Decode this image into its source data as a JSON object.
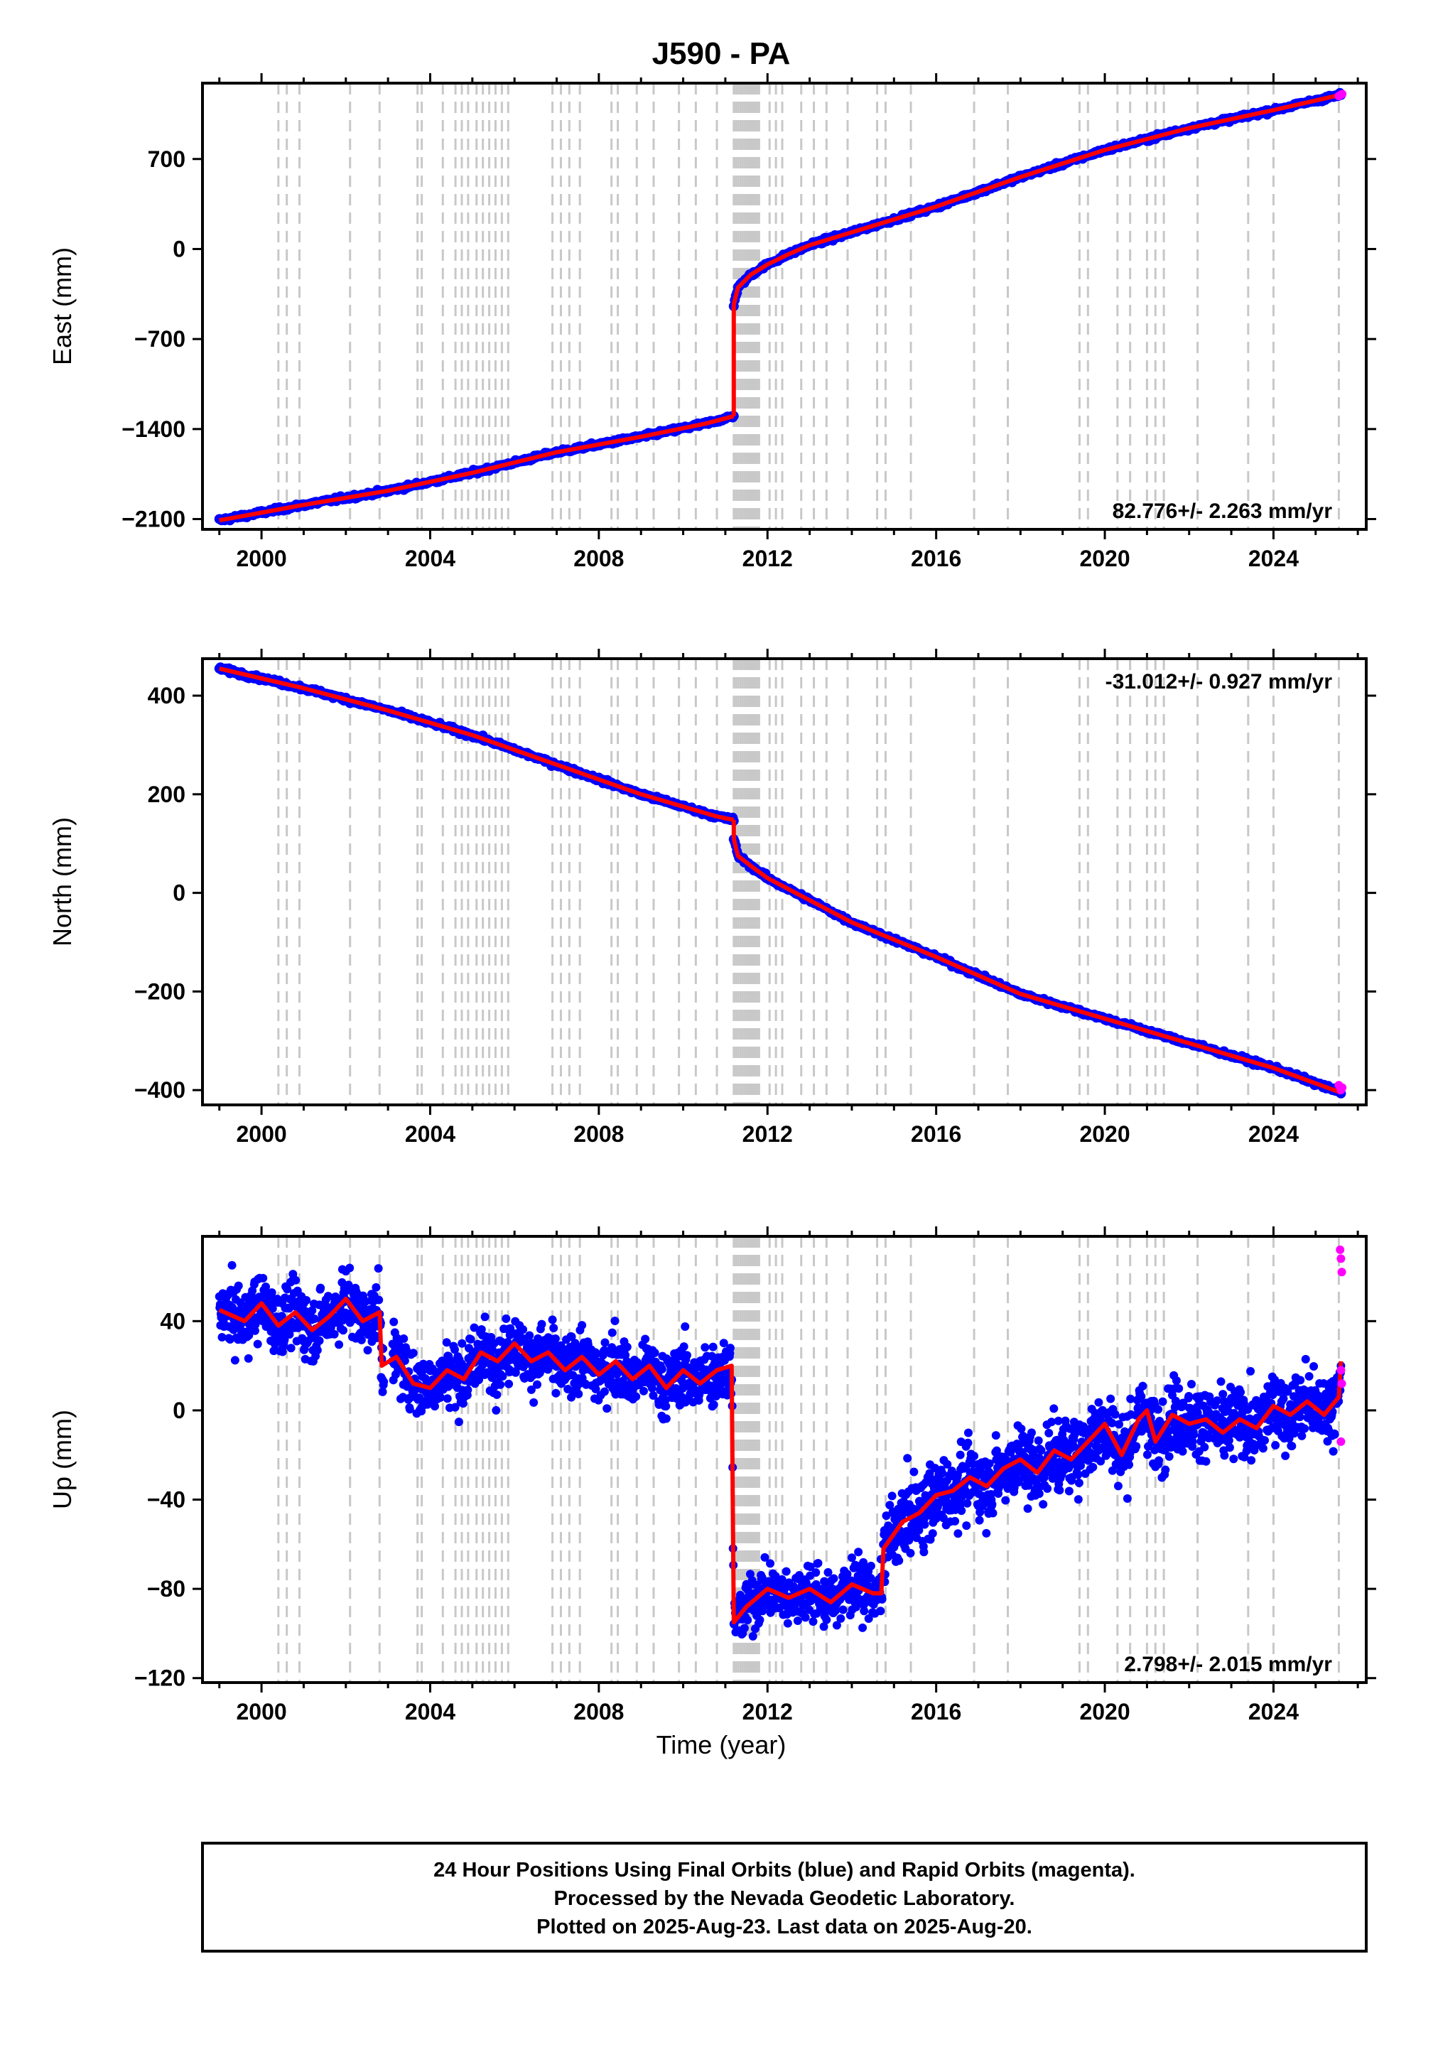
{
  "title": "J590 - PA",
  "xlabel": "Time (year)",
  "x_tick_labels": [
    "2000",
    "2004",
    "2008",
    "2012",
    "2016",
    "2020",
    "2024"
  ],
  "caption": {
    "line1": "24 Hour Positions Using Final Orbits (blue) and Rapid Orbits (magenta).",
    "line2": "Processed by the Nevada Geodetic Laboratory.",
    "line3": "Plotted on 2025-Aug-23. Last data on 2025-Aug-20."
  },
  "colors": {
    "final_orbits": "#0000ff",
    "rapid_orbits": "#ff00ff",
    "model": "#ff0000",
    "event_lines": "#c8c8c8"
  },
  "chart_data": [
    {
      "type": "scatter",
      "ylabel": "East (mm)",
      "rate_label": "82.776+/- 2.263 mm/yr",
      "xlim": [
        1998.6,
        2026.2
      ],
      "ylim": [
        -2180,
        1290
      ],
      "y_ticks": [
        700,
        0,
        -700,
        -1400,
        -2100
      ],
      "y_tick_labels": [
        "700",
        "0",
        "−700",
        "−1400",
        "−2100"
      ],
      "segments": [
        {
          "x": [
            1999.0,
            2001.0,
            2003.0,
            2005.0,
            2007.0,
            2009.0,
            2010.5,
            2011.2
          ],
          "y": [
            -2110,
            -1990,
            -1880,
            -1740,
            -1580,
            -1460,
            -1360,
            -1300
          ]
        },
        {
          "x": [
            2011.2,
            2011.3,
            2011.6,
            2012.0,
            2012.5,
            2013.0,
            2014.0,
            2016.0,
            2018.0,
            2020.0,
            2022.0,
            2024.0,
            2025.6
          ],
          "y": [
            -430,
            -300,
            -200,
            -120,
            -40,
            30,
            130,
            330,
            560,
            770,
            940,
            1080,
            1200
          ]
        }
      ],
      "rapid_points": {
        "x": [
          2025.55,
          2025.6,
          2025.63
        ],
        "y": [
          1190,
          1200,
          1205
        ]
      }
    },
    {
      "type": "scatter",
      "ylabel": "North (mm)",
      "rate_label": "-31.012+/- 0.927 mm/yr",
      "xlim": [
        1998.6,
        2026.2
      ],
      "ylim": [
        -430,
        475
      ],
      "y_ticks": [
        400,
        200,
        0,
        -200,
        -400
      ],
      "y_tick_labels": [
        "400",
        "200",
        "0",
        "−200",
        "−400"
      ],
      "segments": [
        {
          "x": [
            1999.0,
            2001.0,
            2003.0,
            2005.0,
            2007.0,
            2009.0,
            2010.8,
            2011.2
          ],
          "y": [
            455,
            415,
            370,
            320,
            260,
            200,
            155,
            148
          ]
        },
        {
          "x": [
            2011.2,
            2011.3,
            2011.6,
            2012.0,
            2013.0,
            2014.0,
            2016.0,
            2018.0,
            2020.0,
            2022.0,
            2024.0,
            2025.6
          ],
          "y": [
            110,
            75,
            55,
            30,
            -15,
            -60,
            -130,
            -205,
            -255,
            -305,
            -355,
            -405
          ]
        }
      ],
      "rapid_points": {
        "x": [
          2025.55,
          2025.6,
          2025.63
        ],
        "y": [
          -390,
          -400,
          -395
        ]
      }
    },
    {
      "type": "scatter",
      "ylabel": "Up (mm)",
      "rate_label": "2.798+/- 2.015 mm/yr",
      "xlim": [
        1998.6,
        2026.2
      ],
      "ylim": [
        -122,
        78
      ],
      "y_ticks": [
        40,
        0,
        -40,
        -80,
        -120
      ],
      "y_tick_labels": [
        "40",
        "0",
        "−40",
        "−80",
        "−120"
      ],
      "model": {
        "x": [
          1999.0,
          1999.6,
          2000.0,
          2000.4,
          2000.8,
          2001.2,
          2001.6,
          2002.0,
          2002.4,
          2002.8,
          2002.85,
          2003.2,
          2003.6,
          2004.0,
          2004.4,
          2004.8,
          2005.2,
          2005.6,
          2006.0,
          2006.4,
          2006.8,
          2007.2,
          2007.6,
          2008.0,
          2008.4,
          2008.8,
          2009.2,
          2009.6,
          2010.0,
          2010.4,
          2010.8,
          2011.15,
          2011.2,
          2011.5,
          2012.0,
          2012.5,
          2013.0,
          2013.5,
          2014.0,
          2014.5,
          2014.7,
          2014.75,
          2015.2,
          2015.6,
          2016.0,
          2016.4,
          2016.8,
          2017.2,
          2017.6,
          2018.0,
          2018.4,
          2018.8,
          2019.2,
          2019.6,
          2020.0,
          2020.4,
          2020.8,
          2021.0,
          2021.2,
          2021.6,
          2022.0,
          2022.4,
          2022.8,
          2023.2,
          2023.6,
          2024.0,
          2024.4,
          2024.8,
          2025.2,
          2025.55,
          2025.6
        ],
        "y": [
          45,
          40,
          48,
          38,
          44,
          36,
          42,
          50,
          40,
          44,
          20,
          24,
          12,
          10,
          18,
          14,
          26,
          22,
          30,
          22,
          26,
          18,
          24,
          16,
          22,
          14,
          20,
          10,
          18,
          12,
          18,
          20,
          -95,
          -88,
          -80,
          -84,
          -80,
          -86,
          -78,
          -82,
          -82,
          -62,
          -50,
          -46,
          -38,
          -36,
          -30,
          -34,
          -26,
          -22,
          -28,
          -18,
          -22,
          -14,
          -6,
          -20,
          -4,
          0,
          -14,
          -2,
          -6,
          -4,
          -10,
          -4,
          -8,
          2,
          -2,
          4,
          -2,
          6,
          22
        ]
      },
      "rapid_points": {
        "x": [
          2025.58,
          2025.6,
          2025.62,
          2025.6,
          2025.62,
          2025.6
        ],
        "y": [
          72,
          68,
          62,
          18,
          12,
          -14
        ]
      }
    }
  ],
  "event_lines": [
    2000.4,
    2000.6,
    2000.9,
    2002.1,
    2002.8,
    2003.7,
    2003.8,
    2004.3,
    2004.6,
    2004.75,
    2004.9,
    2005.1,
    2005.25,
    2005.4,
    2005.55,
    2005.7,
    2005.85,
    2006.9,
    2007.1,
    2007.3,
    2007.55,
    2008.3,
    2008.45,
    2008.9,
    2009.3,
    2009.9,
    2010.3,
    2010.8,
    2011.2,
    2011.25,
    2011.3,
    2011.35,
    2011.4,
    2011.45,
    2011.5,
    2011.55,
    2011.6,
    2011.65,
    2011.7,
    2011.75,
    2011.8,
    2012.05,
    2012.2,
    2012.35,
    2012.8,
    2013.1,
    2013.4,
    2013.9,
    2014.6,
    2014.8,
    2015.4,
    2016.9,
    2017.7,
    2019.4,
    2019.6,
    2020.3,
    2020.6,
    2021.0,
    2021.2,
    2021.4,
    2022.2,
    2023.4,
    2024.0,
    2025.55
  ]
}
